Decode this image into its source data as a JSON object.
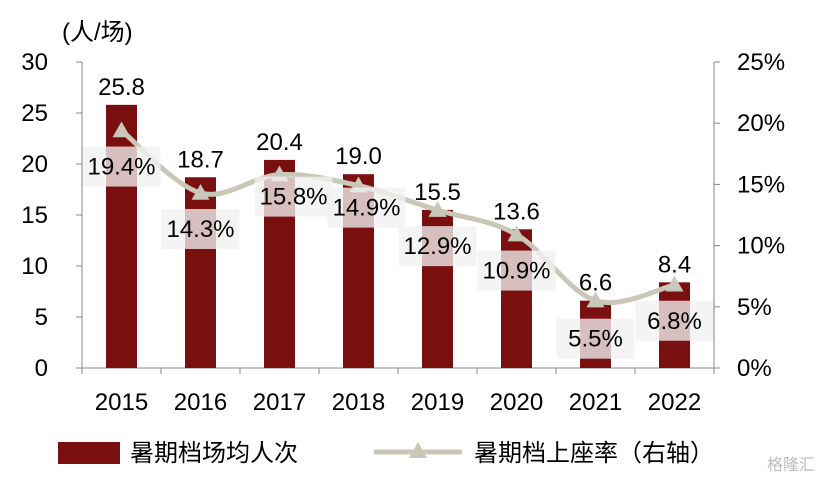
{
  "chart_data": {
    "type": "bar",
    "y_unit_label": "(人/场)",
    "categories": [
      "2015",
      "2016",
      "2017",
      "2018",
      "2019",
      "2020",
      "2021",
      "2022"
    ],
    "series": [
      {
        "name": "暑期档场均人次",
        "axis": "left",
        "values": [
          25.8,
          18.7,
          20.4,
          19.0,
          15.5,
          13.6,
          6.6,
          8.4
        ],
        "labels": [
          "25.8",
          "18.7",
          "20.4",
          "19.0",
          "15.5",
          "13.6",
          "6.6",
          "8.4"
        ],
        "color": "#7a0f0f"
      },
      {
        "name": "暑期档上座率（右轴）",
        "type": "line",
        "axis": "right",
        "values": [
          19.4,
          14.3,
          15.8,
          14.9,
          12.9,
          10.9,
          5.5,
          6.8
        ],
        "labels": [
          "19.4%",
          "14.3%",
          "15.8%",
          "14.9%",
          "12.9%",
          "10.9%",
          "5.5%",
          "6.8%"
        ],
        "color": "#c8c7b8"
      }
    ],
    "y_left": {
      "min": 0,
      "max": 30,
      "ticks": [
        "0",
        "5",
        "10",
        "15",
        "20",
        "25",
        "30"
      ]
    },
    "y_right": {
      "min": 0,
      "max": 25,
      "ticks": [
        "0%",
        "5%",
        "10%",
        "15%",
        "20%",
        "25%"
      ]
    },
    "grid": false,
    "legend_position": "bottom"
  },
  "watermark": "格隆汇"
}
